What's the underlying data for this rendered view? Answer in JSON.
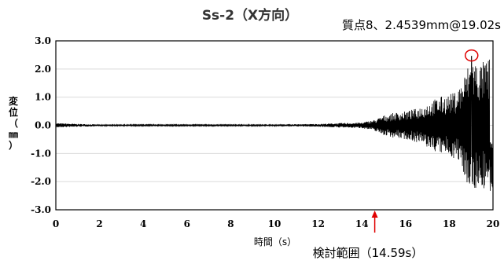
{
  "chart_data": {
    "type": "line",
    "title": "Ss-2（X方向）",
    "xlabel": "時間（s）",
    "ylabel": "変位（㎜）",
    "xlim": [
      0,
      20
    ],
    "ylim": [
      -3.0,
      3.0
    ],
    "x_ticks": [
      "0",
      "2",
      "4",
      "6",
      "8",
      "10",
      "12",
      "14",
      "16",
      "18",
      "20"
    ],
    "y_ticks": [
      "3.0",
      "2.0",
      "1.0",
      "0.0",
      "-1.0",
      "-2.0",
      "-3.0"
    ],
    "grid": "horizontal",
    "series": [
      {
        "color": "#000000",
        "envelope": [
          {
            "x": 0.0,
            "y": 0.08
          },
          {
            "x": 1.0,
            "y": 0.05
          },
          {
            "x": 2.0,
            "y": 0.03
          },
          {
            "x": 4.0,
            "y": 0.02
          },
          {
            "x": 6.0,
            "y": 0.02
          },
          {
            "x": 8.0,
            "y": 0.02
          },
          {
            "x": 10.0,
            "y": 0.03
          },
          {
            "x": 12.0,
            "y": 0.05
          },
          {
            "x": 13.0,
            "y": 0.08
          },
          {
            "x": 14.0,
            "y": 0.1
          },
          {
            "x": 14.6,
            "y": 0.2
          },
          {
            "x": 15.0,
            "y": 0.35
          },
          {
            "x": 15.5,
            "y": 0.45
          },
          {
            "x": 16.0,
            "y": 0.5
          },
          {
            "x": 16.5,
            "y": 0.6
          },
          {
            "x": 17.0,
            "y": 0.8
          },
          {
            "x": 17.5,
            "y": 1.0
          },
          {
            "x": 18.0,
            "y": 1.1
          },
          {
            "x": 18.3,
            "y": 1.2
          },
          {
            "x": 18.6,
            "y": 1.6
          },
          {
            "x": 19.0,
            "y": 2.45
          },
          {
            "x": 19.4,
            "y": 2.2
          },
          {
            "x": 19.8,
            "y": 2.4
          },
          {
            "x": 20.0,
            "y": 2.4
          }
        ]
      }
    ],
    "annotations": [
      {
        "text": "質点8、2.4539mm@19.02s",
        "x": 19.02,
        "y": 2.4539,
        "color": "#e00000",
        "marker": "circle"
      },
      {
        "text": "検討範囲（14.59s）",
        "x": 14.59,
        "color": "#e00000",
        "marker": "arrow"
      }
    ]
  }
}
